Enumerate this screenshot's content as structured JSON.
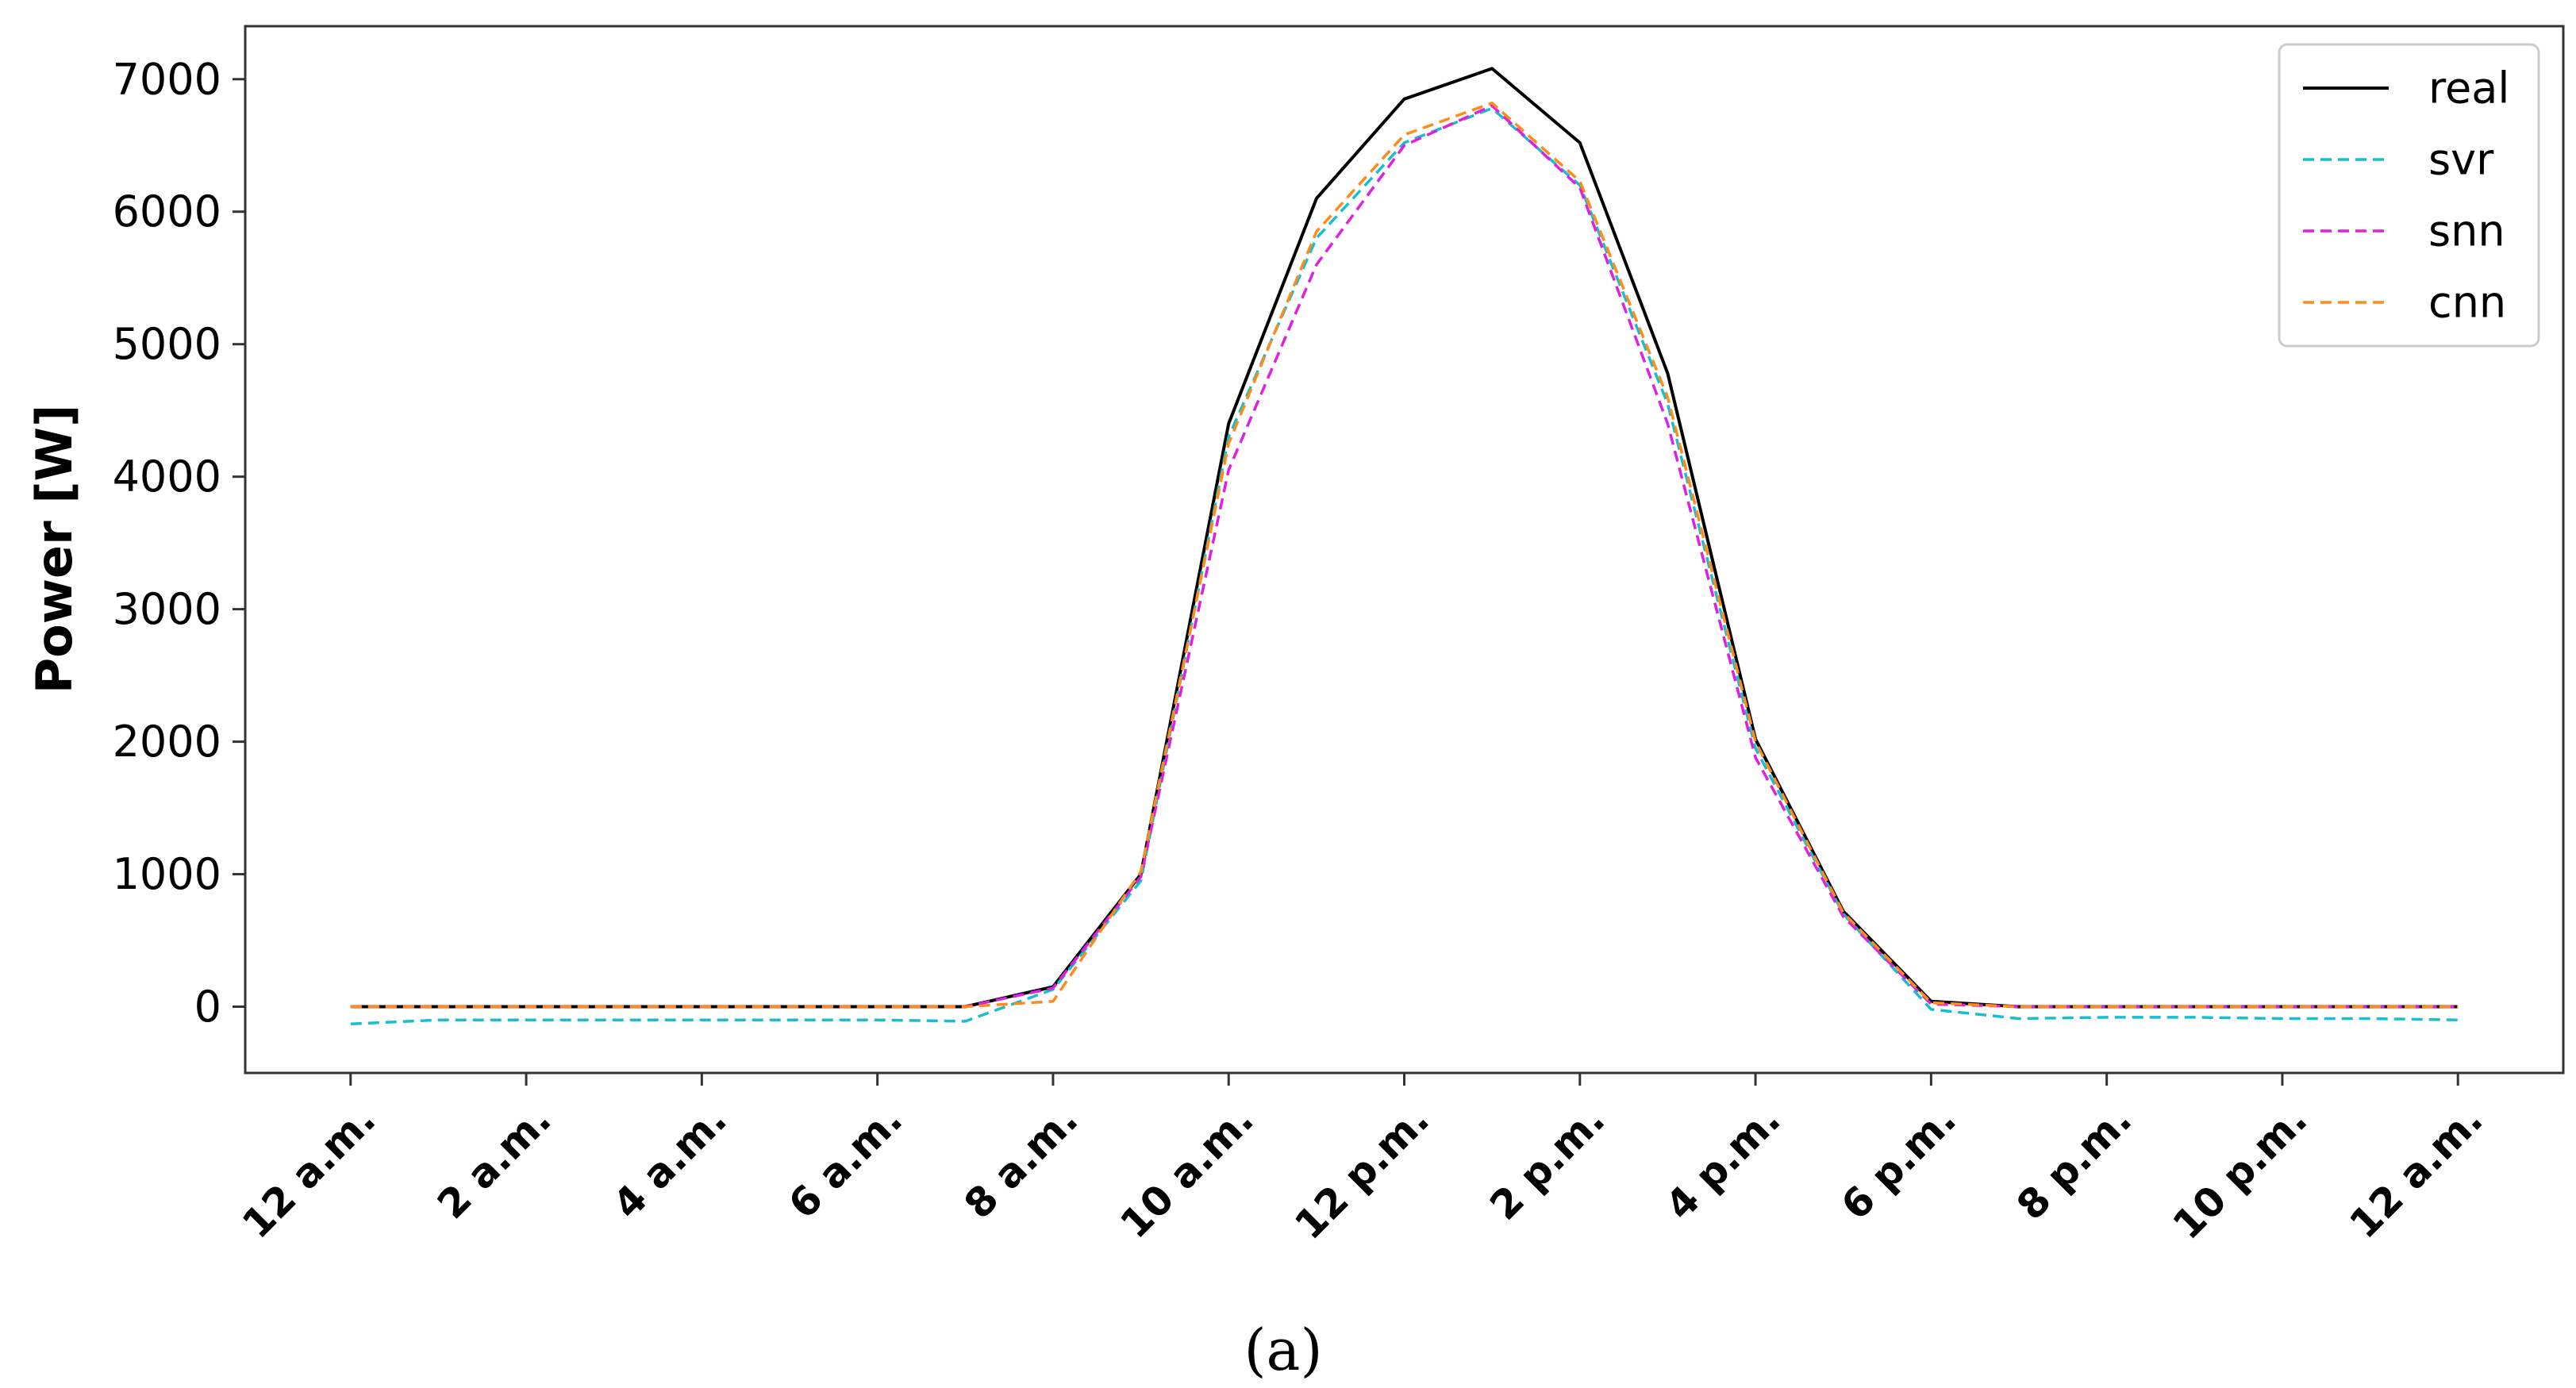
{
  "caption": "(a)",
  "chart_data": {
    "type": "line",
    "title": "",
    "xlabel": "",
    "ylabel": "Power [W]",
    "ylim": [
      -500,
      7400
    ],
    "yticks": [
      0,
      1000,
      2000,
      3000,
      4000,
      5000,
      6000,
      7000
    ],
    "ytick_labels": [
      "0",
      "1000",
      "2000",
      "3000",
      "4000",
      "5000",
      "6000",
      "7000"
    ],
    "xlim": [
      -1.2,
      25.2
    ],
    "xticks": [
      0,
      2,
      4,
      6,
      8,
      10,
      12,
      14,
      16,
      18,
      20,
      22,
      24
    ],
    "xtick_labels": [
      "12 a.m.",
      "2 a.m.",
      "4 a.m.",
      "6 a.m.",
      "8 a.m.",
      "10 a.m.",
      "12 p.m.",
      "2 p.m.",
      "4 p.m.",
      "6 p.m.",
      "8 p.m.",
      "10 p.m.",
      "12 a.m."
    ],
    "grid": false,
    "legend_position": "top-right",
    "x": [
      0,
      1,
      2,
      3,
      4,
      5,
      6,
      7,
      8,
      9,
      10,
      11,
      12,
      13,
      14,
      15,
      16,
      17,
      18,
      19,
      20,
      21,
      22,
      23,
      24
    ],
    "series": [
      {
        "name": "real",
        "color": "#000000",
        "style": "solid",
        "values": [
          0,
          0,
          0,
          0,
          0,
          0,
          0,
          0,
          150,
          1000,
          4400,
          6100,
          6850,
          7080,
          6520,
          4780,
          2020,
          720,
          40,
          0,
          0,
          0,
          0,
          0,
          0
        ]
      },
      {
        "name": "svr",
        "color": "#17becf",
        "style": "dashed",
        "values": [
          -130,
          -100,
          -100,
          -100,
          -100,
          -100,
          -100,
          -110,
          130,
          950,
          4300,
          5800,
          6520,
          6780,
          6200,
          4550,
          1950,
          700,
          -20,
          -90,
          -80,
          -80,
          -90,
          -90,
          -100
        ]
      },
      {
        "name": "snn",
        "color": "#e020e0",
        "style": "dashed",
        "values": [
          0,
          0,
          0,
          0,
          0,
          0,
          0,
          0,
          140,
          980,
          4050,
          5600,
          6500,
          6800,
          6180,
          4400,
          1880,
          680,
          20,
          0,
          0,
          0,
          0,
          0,
          0
        ]
      },
      {
        "name": "cnn",
        "color": "#ff8c1a",
        "style": "dashed",
        "values": [
          0,
          0,
          0,
          0,
          0,
          0,
          0,
          0,
          40,
          1020,
          4250,
          5850,
          6580,
          6820,
          6230,
          4600,
          2000,
          710,
          30,
          0,
          0,
          0,
          0,
          0,
          0
        ]
      }
    ]
  }
}
